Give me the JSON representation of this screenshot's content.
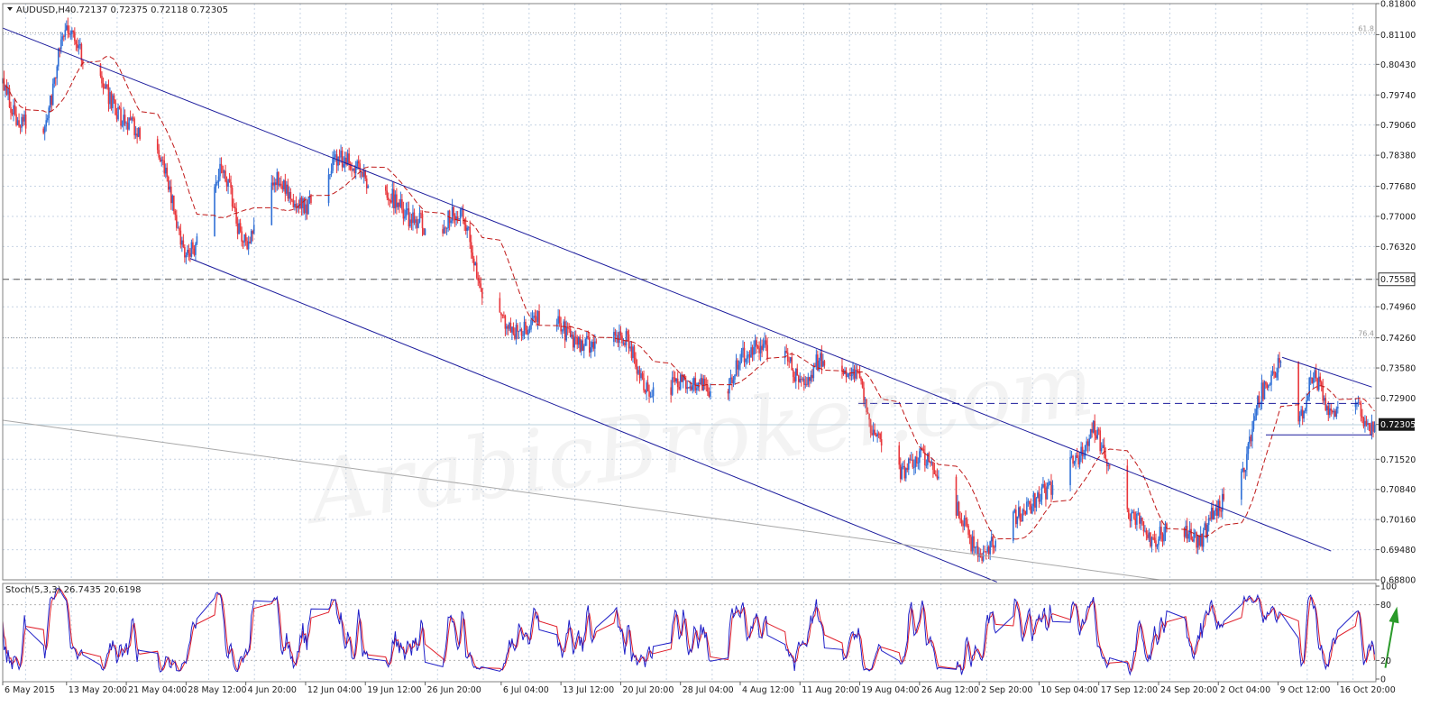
{
  "header": {
    "symbol": "AUDUSD,H4",
    "ohlc": "0.72137 0.72375 0.72118 0.72305",
    "stoch_label": "Stoch(5,3,3) 26.7435 20.6198"
  },
  "colors": {
    "bull": "#2f6fd6",
    "bear": "#e8363b",
    "ma": "#c01818",
    "channel": "#1a1a9c",
    "grid": "#c7d4e4",
    "stoch_main": "#2020c8",
    "stoch_signal": "#e01e2a",
    "arrow": "#2a9a2a"
  },
  "chart_data": [
    {
      "type": "candlestick",
      "series": [
        {
          "name": "AUDUSD,H4",
          "kind": "candles"
        },
        {
          "name": "moving-average",
          "kind": "line",
          "style": "dashed"
        }
      ],
      "ylim": [
        0.688,
        0.818
      ],
      "y_ticks": [
        "0.81800",
        "0.81100",
        "0.80430",
        "0.79740",
        "0.79060",
        "0.78380",
        "0.77680",
        "0.77000",
        "0.76320",
        "0.75580",
        "0.74960",
        "0.74260",
        "0.73580",
        "0.72900",
        "0.72305",
        "0.71520",
        "0.70840",
        "0.70160",
        "0.69480",
        "0.68800"
      ],
      "current_price": "0.72305",
      "x_ticks": [
        "6 May 2015",
        "13 May 20:00",
        "21 May 04:00",
        "28 May 12:00",
        "4 Jun 20:00",
        "12 Jun 04:00",
        "19 Jun 12:00",
        "26 Jun 20:00",
        "6 Jul 04:00",
        "13 Jul 12:00",
        "20 Jul 20:00",
        "28 Jul 04:00",
        "4 Aug 12:00",
        "11 Aug 20:00",
        "19 Aug 04:00",
        "26 Aug 12:00",
        "2 Sep 20:00",
        "10 Sep 04:00",
        "17 Sep 12:00",
        "24 Sep 20:00",
        "2 Oct 04:00",
        "9 Oct 12:00",
        "16 Oct 20:00"
      ],
      "x_range": [
        "6 May 2015",
        "21 Oct 2015"
      ],
      "anchors": [
        {
          "date": "6 May 2015",
          "price": 0.8
        },
        {
          "date": "8 May 2015",
          "price": 0.792
        },
        {
          "date": "11 May 2015",
          "price": 0.79
        },
        {
          "date": "14 May 2015",
          "price": 0.812
        },
        {
          "date": "18 May 2015",
          "price": 0.8
        },
        {
          "date": "21 May 2015",
          "price": 0.792
        },
        {
          "date": "25 May 2015",
          "price": 0.784
        },
        {
          "date": "29 May 2015",
          "price": 0.762
        },
        {
          "date": "2 Jun 2015",
          "price": 0.78
        },
        {
          "date": "5 Jun 2015",
          "price": 0.764
        },
        {
          "date": "9 Jun 2015",
          "price": 0.778
        },
        {
          "date": "12 Jun 2015",
          "price": 0.772
        },
        {
          "date": "17 Jun 2015",
          "price": 0.783
        },
        {
          "date": "21 Jun 2015",
          "price": 0.777
        },
        {
          "date": "26 Jun 2015",
          "price": 0.769
        },
        {
          "date": "28 Jun 2015",
          "price": 0.766
        },
        {
          "date": "1 Jul 2015",
          "price": 0.771
        },
        {
          "date": "5 Jul 2015",
          "price": 0.75
        },
        {
          "date": "8 Jul 2015",
          "price": 0.744
        },
        {
          "date": "12 Jul 2015",
          "price": 0.748
        },
        {
          "date": "16 Jul 2015",
          "price": 0.741
        },
        {
          "date": "21 Jul 2015",
          "price": 0.743
        },
        {
          "date": "25 Jul 2015",
          "price": 0.73
        },
        {
          "date": "29 Jul 2015",
          "price": 0.733
        },
        {
          "date": "2 Aug 2015",
          "price": 0.73
        },
        {
          "date": "6 Aug 2015",
          "price": 0.74
        },
        {
          "date": "10 Aug 2015",
          "price": 0.74
        },
        {
          "date": "12 Aug 2015",
          "price": 0.733
        },
        {
          "date": "15 Aug 2015",
          "price": 0.738
        },
        {
          "date": "19 Aug 2015",
          "price": 0.734
        },
        {
          "date": "21 Aug 2015",
          "price": 0.722
        },
        {
          "date": "24 Aug 2015",
          "price": 0.712
        },
        {
          "date": "27 Aug 2015",
          "price": 0.716
        },
        {
          "date": "31 Aug 2015",
          "price": 0.704
        },
        {
          "date": "3 Sep 2015",
          "price": 0.694
        },
        {
          "date": "5 Sep 2015",
          "price": 0.697
        },
        {
          "date": "8 Sep 2015",
          "price": 0.703
        },
        {
          "date": "11 Sep 2015",
          "price": 0.708
        },
        {
          "date": "15 Sep 2015",
          "price": 0.715
        },
        {
          "date": "17 Sep 2015",
          "price": 0.722
        },
        {
          "date": "19 Sep 2015",
          "price": 0.714
        },
        {
          "date": "22 Sep 2015",
          "price": 0.702
        },
        {
          "date": "24 Sep 2015",
          "price": 0.697
        },
        {
          "date": "27 Sep 2015",
          "price": 0.7
        },
        {
          "date": "30 Sep 2015",
          "price": 0.697
        },
        {
          "date": "2 Oct 2015",
          "price": 0.704
        },
        {
          "date": "5 Oct 2015",
          "price": 0.712
        },
        {
          "date": "8 Oct 2015",
          "price": 0.731
        },
        {
          "date": "10 Oct 2015",
          "price": 0.737
        },
        {
          "date": "12 Oct 2015",
          "price": 0.723
        },
        {
          "date": "14 Oct 2015",
          "price": 0.734
        },
        {
          "date": "16 Oct 2015",
          "price": 0.726
        },
        {
          "date": "19 Oct 2015",
          "price": 0.727
        },
        {
          "date": "21 Oct 2015",
          "price": 0.7223
        }
      ],
      "horizontal_levels": [
        {
          "price": 0.8114,
          "style": "dotted",
          "label": "61.8"
        },
        {
          "price": 0.7558,
          "style": "dashed",
          "label": ""
        },
        {
          "price": 0.7426,
          "style": "dotted",
          "label": "76.4"
        },
        {
          "price": 0.723,
          "style": "solid-light",
          "label": ""
        }
      ],
      "trendlines": [
        {
          "from": {
            "date": "6 May 2015",
            "price": 0.8125
          },
          "to": {
            "date": "16 Oct 2015",
            "price": 0.6945
          }
        },
        {
          "from": {
            "date": "29 May 2015",
            "price": 0.7605
          },
          "to": {
            "date": "5 Sep 2015",
            "price": 0.6875
          }
        },
        {
          "from": {
            "date": "6 May 2015",
            "price": 0.724
          },
          "to": {
            "date": "25 Sep 2015",
            "price": 0.688
          }
        },
        {
          "from": {
            "date": "10 Oct 2015",
            "price": 0.7382
          },
          "to": {
            "date": "21 Oct 2015",
            "price": 0.7315
          }
        },
        {
          "from": {
            "date": "19 Aug 2015",
            "price": 0.7278
          },
          "to": {
            "date": "20 Oct 2015",
            "price": 0.7278
          },
          "style": "dashed"
        },
        {
          "from": {
            "date": "8 Oct 2015",
            "price": 0.7207
          },
          "to": {
            "date": "21 Oct 2015",
            "price": 0.7207
          }
        }
      ]
    },
    {
      "type": "line",
      "title": "Stoch(5,3,3) 26.7435 20.6198",
      "ylim": [
        0,
        100
      ],
      "y_ticks": [
        "100",
        "80",
        "20",
        "0"
      ],
      "levels": [
        80,
        20
      ],
      "series": [
        {
          "name": "main",
          "last": 26.7435
        },
        {
          "name": "signal",
          "last": 20.6198
        }
      ]
    }
  ]
}
